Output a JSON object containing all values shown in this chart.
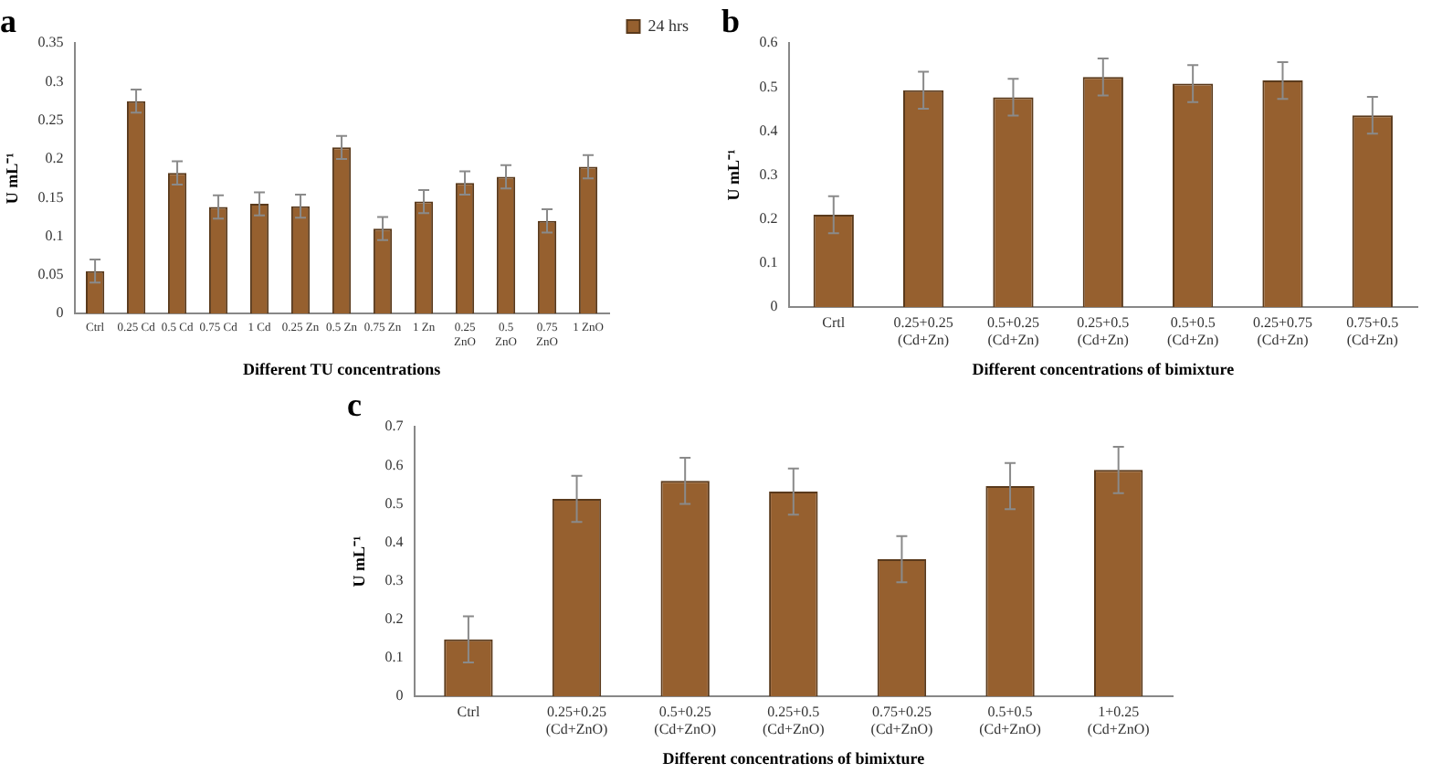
{
  "chart_data": [
    {
      "type": "bar",
      "title": "a",
      "xlabel": "Different TU concentrations",
      "ylabel": "U mL⁻¹",
      "categories": [
        "Ctrl",
        "0.25 Cd",
        "0.5 Cd",
        "0.75 Cd",
        "1 Cd",
        "0.25 Zn",
        "0.5 Zn",
        "0.75 Zn",
        "1 Zn",
        "0.25\nZnO",
        "0.5\nZnO",
        "0.75\nZnO",
        "1 ZnO"
      ],
      "series": [
        {
          "name": "24 hrs",
          "color": "#96602f",
          "values": [
            0.055,
            0.275,
            0.182,
            0.138,
            0.142,
            0.139,
            0.215,
            0.11,
            0.145,
            0.169,
            0.177,
            0.12,
            0.19
          ],
          "errors": [
            0.015,
            0.015,
            0.015,
            0.015,
            0.015,
            0.015,
            0.015,
            0.015,
            0.015,
            0.015,
            0.015,
            0.015,
            0.015
          ]
        }
      ],
      "ylim": [
        0,
        0.35
      ],
      "yticks": [
        0,
        0.05,
        0.1,
        0.15,
        0.2,
        0.25,
        0.3,
        0.35
      ],
      "grid": false,
      "legend": "top right"
    },
    {
      "type": "bar",
      "title": "b",
      "xlabel": "Different concentrations of bimixture",
      "ylabel": "U mL⁻¹",
      "categories": [
        "Crtl",
        "0.25+0.25\n(Cd+Zn)",
        "0.5+0.25\n(Cd+Zn)",
        "0.25+0.5\n(Cd+Zn)",
        "0.5+0.5\n(Cd+Zn)",
        "0.25+0.75\n(Cd+Zn)",
        "0.75+0.5\n(Cd+Zn)"
      ],
      "series": [
        {
          "color": "#96602f",
          "values": [
            0.21,
            0.493,
            0.477,
            0.523,
            0.508,
            0.515,
            0.436
          ],
          "errors": [
            0.042,
            0.042,
            0.042,
            0.042,
            0.042,
            0.042,
            0.042
          ]
        }
      ],
      "ylim": [
        0,
        0.6
      ],
      "yticks": [
        0,
        0.1,
        0.2,
        0.3,
        0.4,
        0.5,
        0.6
      ],
      "grid": false,
      "legend": false
    },
    {
      "type": "bar",
      "title": "c",
      "xlabel": "Different concentrations of bimixture",
      "ylabel": "U mL⁻¹",
      "categories": [
        "Ctrl",
        "0.25+0.25\n(Cd+ZnO)",
        "0.5+0.25\n(Cd+ZnO)",
        "0.25+0.5\n(Cd+ZnO)",
        "0.75+0.25\n(Cd+ZnO)",
        "0.5+0.5\n(Cd+ZnO)",
        "1+0.25\n(Cd+ZnO)"
      ],
      "series": [
        {
          "color": "#96602f",
          "values": [
            0.148,
            0.513,
            0.56,
            0.532,
            0.356,
            0.546,
            0.588
          ],
          "errors": [
            0.06,
            0.06,
            0.06,
            0.06,
            0.06,
            0.06,
            0.06
          ]
        }
      ],
      "ylim": [
        0,
        0.7
      ],
      "yticks": [
        0,
        0.1,
        0.2,
        0.3,
        0.4,
        0.5,
        0.6,
        0.7
      ],
      "grid": false,
      "legend": false
    }
  ]
}
